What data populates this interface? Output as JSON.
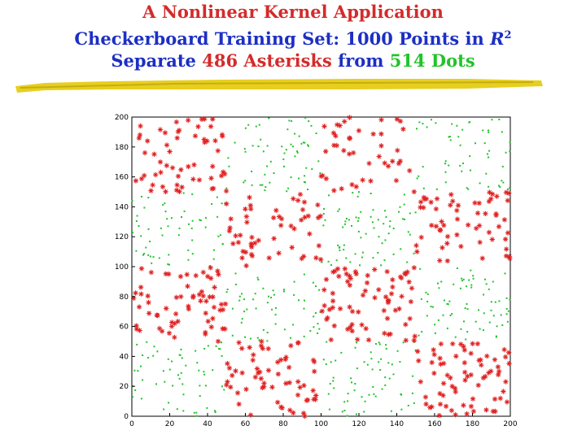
{
  "slide": {
    "title": "A Nonlinear Kernel Application",
    "subtitle_pre": "Checkerboard Training Set: 1000 Points in ",
    "subtitle_r": "R",
    "subtitle_sup": "2",
    "line3_pre": "Separate ",
    "line3_asterisks": "486 Asterisks",
    "line3_mid": " from ",
    "line3_dots": "514 Dots"
  },
  "colors": {
    "title": "#d42b2b",
    "subtitle": "#1c2fc4",
    "asterisk": "#e02020",
    "dot": "#22c22b",
    "underline": "#e6cf1e"
  },
  "chart_data": {
    "type": "scatter",
    "title": "",
    "xlabel": "",
    "ylabel": "",
    "xlim": [
      0,
      200
    ],
    "ylim": [
      0,
      200
    ],
    "xticks": [
      0,
      20,
      40,
      60,
      80,
      100,
      120,
      140,
      160,
      180,
      200
    ],
    "yticks": [
      0,
      20,
      40,
      60,
      80,
      100,
      120,
      140,
      160,
      180,
      200
    ],
    "grid": false,
    "legend": "none",
    "checkerboard": {
      "x_edges": [
        0,
        50,
        100,
        150,
        200
      ],
      "y_edges": [
        0,
        50,
        100,
        150,
        200
      ],
      "asterisk_cells_start_bottom_left": false
    },
    "series": [
      {
        "marker": "asterisk",
        "count": 486
      },
      {
        "marker": "dot",
        "count": 514
      }
    ]
  }
}
